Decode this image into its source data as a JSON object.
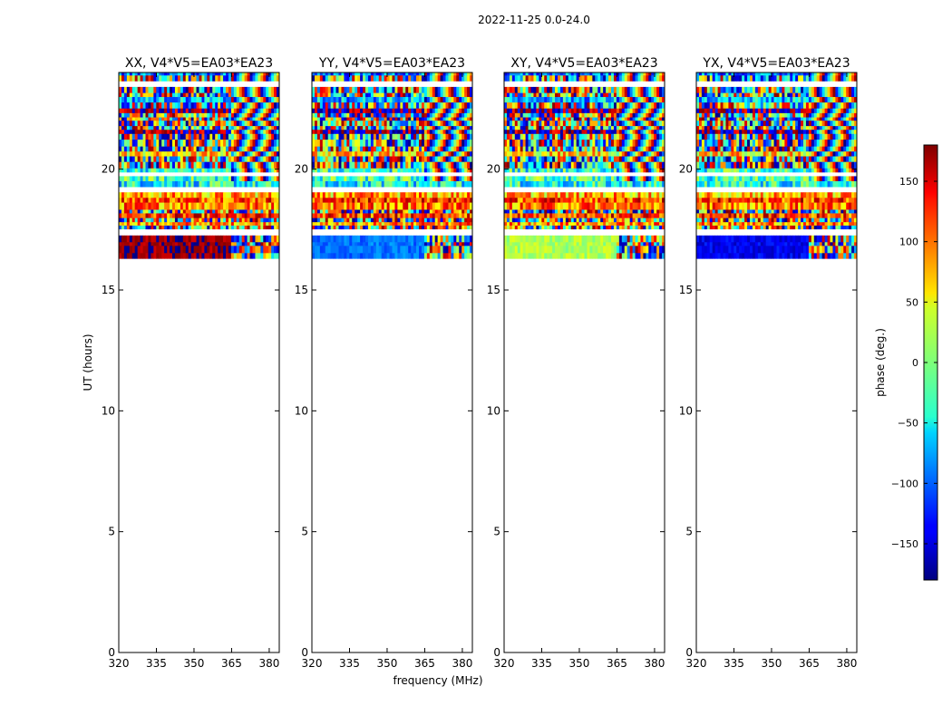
{
  "figure": {
    "suptitle": "2022-11-25 0.0-24.0",
    "xlabel": "frequency (MHz)",
    "ylabel": "UT (hours)"
  },
  "colorbar": {
    "label": "phase (deg.)",
    "colormap": "jet",
    "range": [
      -180,
      180
    ],
    "ticks": [
      -150,
      -100,
      -50,
      0,
      50,
      100,
      150
    ],
    "tick_labels": [
      "−150",
      "−100",
      "−50",
      "0",
      "50",
      "100",
      "150"
    ]
  },
  "chart_data": [
    {
      "type": "heatmap",
      "title": "XX, V4*V5=EA03*EA23",
      "x_ticks": [
        320,
        335,
        350,
        365,
        380
      ],
      "y_ticks": [
        0,
        5,
        10,
        15,
        20
      ],
      "xlim": [
        320,
        384
      ],
      "ylim": [
        0,
        24
      ],
      "data_time_range_hours": [
        16.3,
        24.0
      ],
      "dominant_phase_low_band_deg": 170
    },
    {
      "type": "heatmap",
      "title": "YY, V4*V5=EA03*EA23",
      "x_ticks": [
        320,
        335,
        350,
        365,
        380
      ],
      "y_ticks": [
        0,
        5,
        10,
        15,
        20
      ],
      "xlim": [
        320,
        384
      ],
      "ylim": [
        0,
        24
      ],
      "data_time_range_hours": [
        16.3,
        24.0
      ],
      "dominant_phase_low_band_deg": -95
    },
    {
      "type": "heatmap",
      "title": "XY, V4*V5=EA03*EA23",
      "x_ticks": [
        320,
        335,
        350,
        365,
        380
      ],
      "y_ticks": [
        0,
        5,
        10,
        15,
        20
      ],
      "xlim": [
        320,
        384
      ],
      "ylim": [
        0,
        24
      ],
      "data_time_range_hours": [
        16.3,
        24.0
      ],
      "dominant_phase_low_band_deg": 15
    },
    {
      "type": "heatmap",
      "title": "YX, V4*V5=EA03*EA23",
      "x_ticks": [
        320,
        335,
        350,
        365,
        380
      ],
      "y_ticks": [
        0,
        5,
        10,
        15,
        20
      ],
      "xlim": [
        320,
        384
      ],
      "ylim": [
        0,
        24
      ],
      "data_time_range_hours": [
        16.3,
        24.0
      ],
      "dominant_phase_low_band_deg": -140
    }
  ]
}
